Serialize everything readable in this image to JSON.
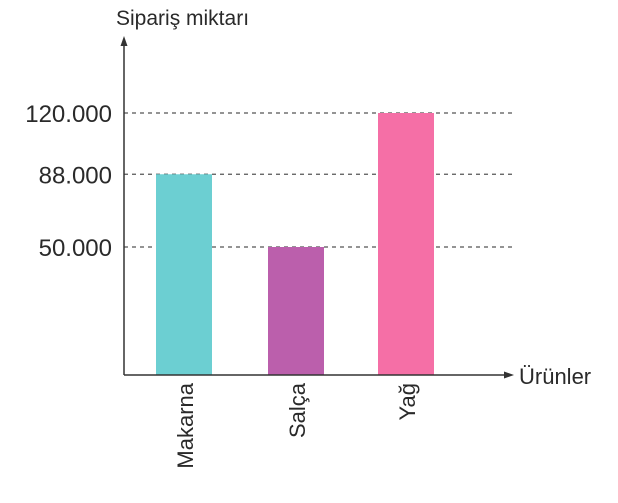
{
  "chart_data": {
    "type": "bar",
    "ylabel": "Sipariş miktarı",
    "xlabel": "Ürünler",
    "categories": [
      "Makarna",
      "Salça",
      "Yağ"
    ],
    "values": [
      88000,
      50000,
      120000
    ],
    "bar_colors": [
      "#6ccfd2",
      "#bb5fac",
      "#f56fa6"
    ],
    "yticks": [
      50000,
      88000,
      120000
    ],
    "ytick_labels": [
      "50.000",
      "88.000",
      "120.000"
    ],
    "ylim": [
      0,
      150000
    ],
    "reference_lines": "dashed lines at each tick value",
    "grid": false
  }
}
